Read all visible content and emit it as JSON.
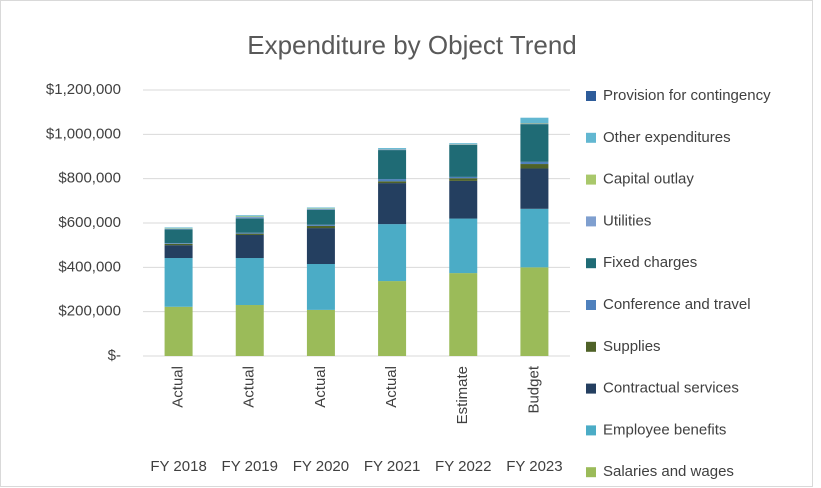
{
  "chart_data": {
    "type": "stacked_bar",
    "title": "Expenditure by Object Trend",
    "categories": [
      "Actual",
      "Actual",
      "Actual",
      "Actual",
      "Estimate",
      "Budget"
    ],
    "category_groups": [
      "FY 2018",
      "FY 2019",
      "FY 2020",
      "FY 2021",
      "FY 2022",
      "FY 2023"
    ],
    "series": [
      {
        "name": "Salaries and wages",
        "color": "#9bbb59",
        "values": [
          222000,
          230000,
          208000,
          338000,
          374000,
          400000
        ]
      },
      {
        "name": "Employee benefits",
        "color": "#4bacc6",
        "values": [
          220000,
          212000,
          207000,
          257000,
          246000,
          264000
        ]
      },
      {
        "name": "Contractual services",
        "color": "#243f60",
        "values": [
          58000,
          104000,
          162000,
          185000,
          170000,
          182000
        ]
      },
      {
        "name": "Supplies",
        "color": "#4f6228",
        "values": [
          6000,
          6000,
          10000,
          8000,
          12000,
          20000
        ]
      },
      {
        "name": "Conference and travel",
        "color": "#4f81bd",
        "values": [
          3000,
          4000,
          5000,
          10000,
          6000,
          10000
        ]
      },
      {
        "name": "Fixed charges",
        "color": "#1f6b75",
        "values": [
          62000,
          65000,
          68000,
          131000,
          145000,
          170000
        ]
      },
      {
        "name": "Utilities",
        "color": "#7f9fcf",
        "values": [
          3000,
          6000,
          4000,
          3000,
          2000,
          3000
        ]
      },
      {
        "name": "Capital outlay",
        "color": "#a9c86b",
        "values": [
          2000,
          3000,
          2000,
          1000,
          1000,
          2000
        ]
      },
      {
        "name": "Other expenditures",
        "color": "#62b7d1",
        "values": [
          4000,
          5000,
          4000,
          5000,
          4000,
          24000
        ]
      },
      {
        "name": "Provision for contingency",
        "color": "#2e5c9a",
        "values": [
          0,
          0,
          0,
          0,
          0,
          0
        ]
      }
    ],
    "ylim": [
      0,
      1200000
    ],
    "yticks": [
      {
        "value": 0,
        "label": "$-"
      },
      {
        "value": 200000,
        "label": "$200,000"
      },
      {
        "value": 400000,
        "label": "$400,000"
      },
      {
        "value": 600000,
        "label": "$600,000"
      },
      {
        "value": 800000,
        "label": "$800,000"
      },
      {
        "value": 1000000,
        "label": "$1,000,000"
      },
      {
        "value": 1200000,
        "label": "$1,200,000"
      }
    ],
    "grid": true,
    "legend": "right"
  }
}
